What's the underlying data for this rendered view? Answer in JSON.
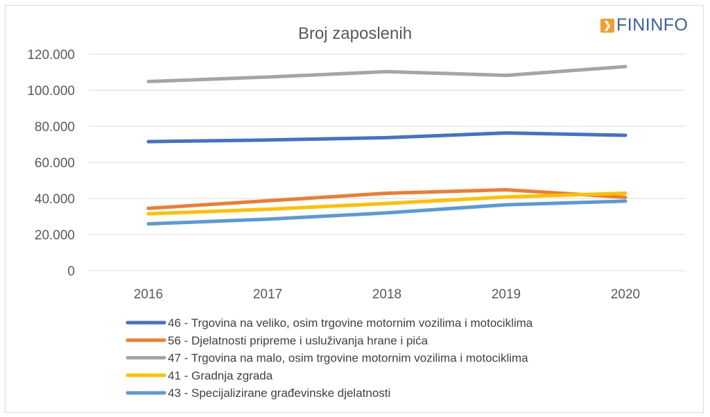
{
  "logo": {
    "text": "FININFO",
    "brand_color": "#3a5fa8",
    "mark_color": "#f0a030"
  },
  "chart_data": {
    "type": "line",
    "title": "Broj zaposlenih",
    "categories": [
      "2016",
      "2017",
      "2018",
      "2019",
      "2020"
    ],
    "ylim": [
      0,
      120000
    ],
    "yticks": [
      0,
      20000,
      40000,
      60000,
      80000,
      100000,
      120000
    ],
    "ytick_labels": [
      "0",
      "20.000",
      "40.000",
      "60.000",
      "80.000",
      "100.000",
      "120.000"
    ],
    "grid": true,
    "legend_position": "bottom",
    "series": [
      {
        "name": "46 - Trgovina na veliko, osim trgovine motornim vozilima i motociklima",
        "color": "#4472c4",
        "values": [
          71500,
          72400,
          73700,
          76300,
          75000
        ]
      },
      {
        "name": "56 - Djelatnosti pripreme i usluživanja hrane i pića",
        "color": "#ed7d31",
        "values": [
          34500,
          38700,
          42900,
          44800,
          40600
        ]
      },
      {
        "name": "47 - Trgovina na malo, osim trgovine motornim vozilima i motociklima",
        "color": "#a5a5a5",
        "values": [
          104800,
          107300,
          110300,
          108200,
          113100
        ]
      },
      {
        "name": "41 - Gradnja zgrada",
        "color": "#ffc000",
        "values": [
          31500,
          34000,
          37200,
          40800,
          42900
        ]
      },
      {
        "name": "43 - Specijalizirane građevinske djelatnosti",
        "color": "#5b9bd5",
        "values": [
          25900,
          28500,
          32000,
          36500,
          38500
        ]
      }
    ]
  }
}
